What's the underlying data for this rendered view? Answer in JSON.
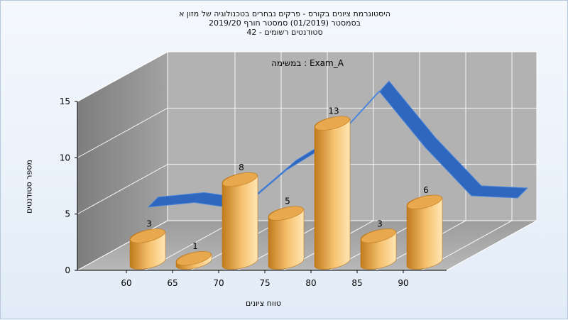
{
  "chart_data": {
    "type": "bar",
    "title_lines": [
      "היסטוגרמת ציונים בקורס - פרקים נבחרים בטכנולוגיה של מזון א",
      "בסמסטר  (01/2019)  סמסטר חורף 2019/20",
      "סטודנטים רשומים - 42"
    ],
    "legend_text": "במשימה : Exam_A",
    "xlabel": "טווח ציונים",
    "ylabel": "מספר סטודנטים",
    "x_ticks": [
      "60",
      "65",
      "70",
      "75",
      "80",
      "85",
      "90"
    ],
    "y_ticks": [
      "0",
      "5",
      "10",
      "15"
    ],
    "ylim": [
      0,
      15
    ],
    "bars": [
      {
        "x": 60,
        "value": 3,
        "label": "3"
      },
      {
        "x": 65,
        "value": 1,
        "label": "1"
      },
      {
        "x": 70,
        "value": 8,
        "label": "8"
      },
      {
        "x": 75,
        "value": 5,
        "label": "5"
      },
      {
        "x": 80,
        "value": 13,
        "label": "13"
      },
      {
        "x": 85,
        "value": 3,
        "label": "3"
      },
      {
        "x": 90,
        "value": 6,
        "label": "6"
      }
    ],
    "curve": [
      {
        "x": 57.5,
        "y": 3.2
      },
      {
        "x": 62.5,
        "y": 3.6
      },
      {
        "x": 67.5,
        "y": 3.0
      },
      {
        "x": 72.5,
        "y": 6.5
      },
      {
        "x": 77.5,
        "y": 9.0
      },
      {
        "x": 82.5,
        "y": 13.5
      },
      {
        "x": 87.5,
        "y": 8.5
      },
      {
        "x": 92.5,
        "y": 4.2
      },
      {
        "x": 97.5,
        "y": 4.0
      }
    ],
    "colors": {
      "bar_dark": "#c07a1c",
      "bar_mid": "#f6c270",
      "bar_light": "#ffe6b4",
      "curve": "#2f66be",
      "curve_light": "#4a86dc",
      "wall_back": "#b2b2b2",
      "wall_side": "#8a8a8a",
      "floor": "#a4a4a4"
    }
  }
}
